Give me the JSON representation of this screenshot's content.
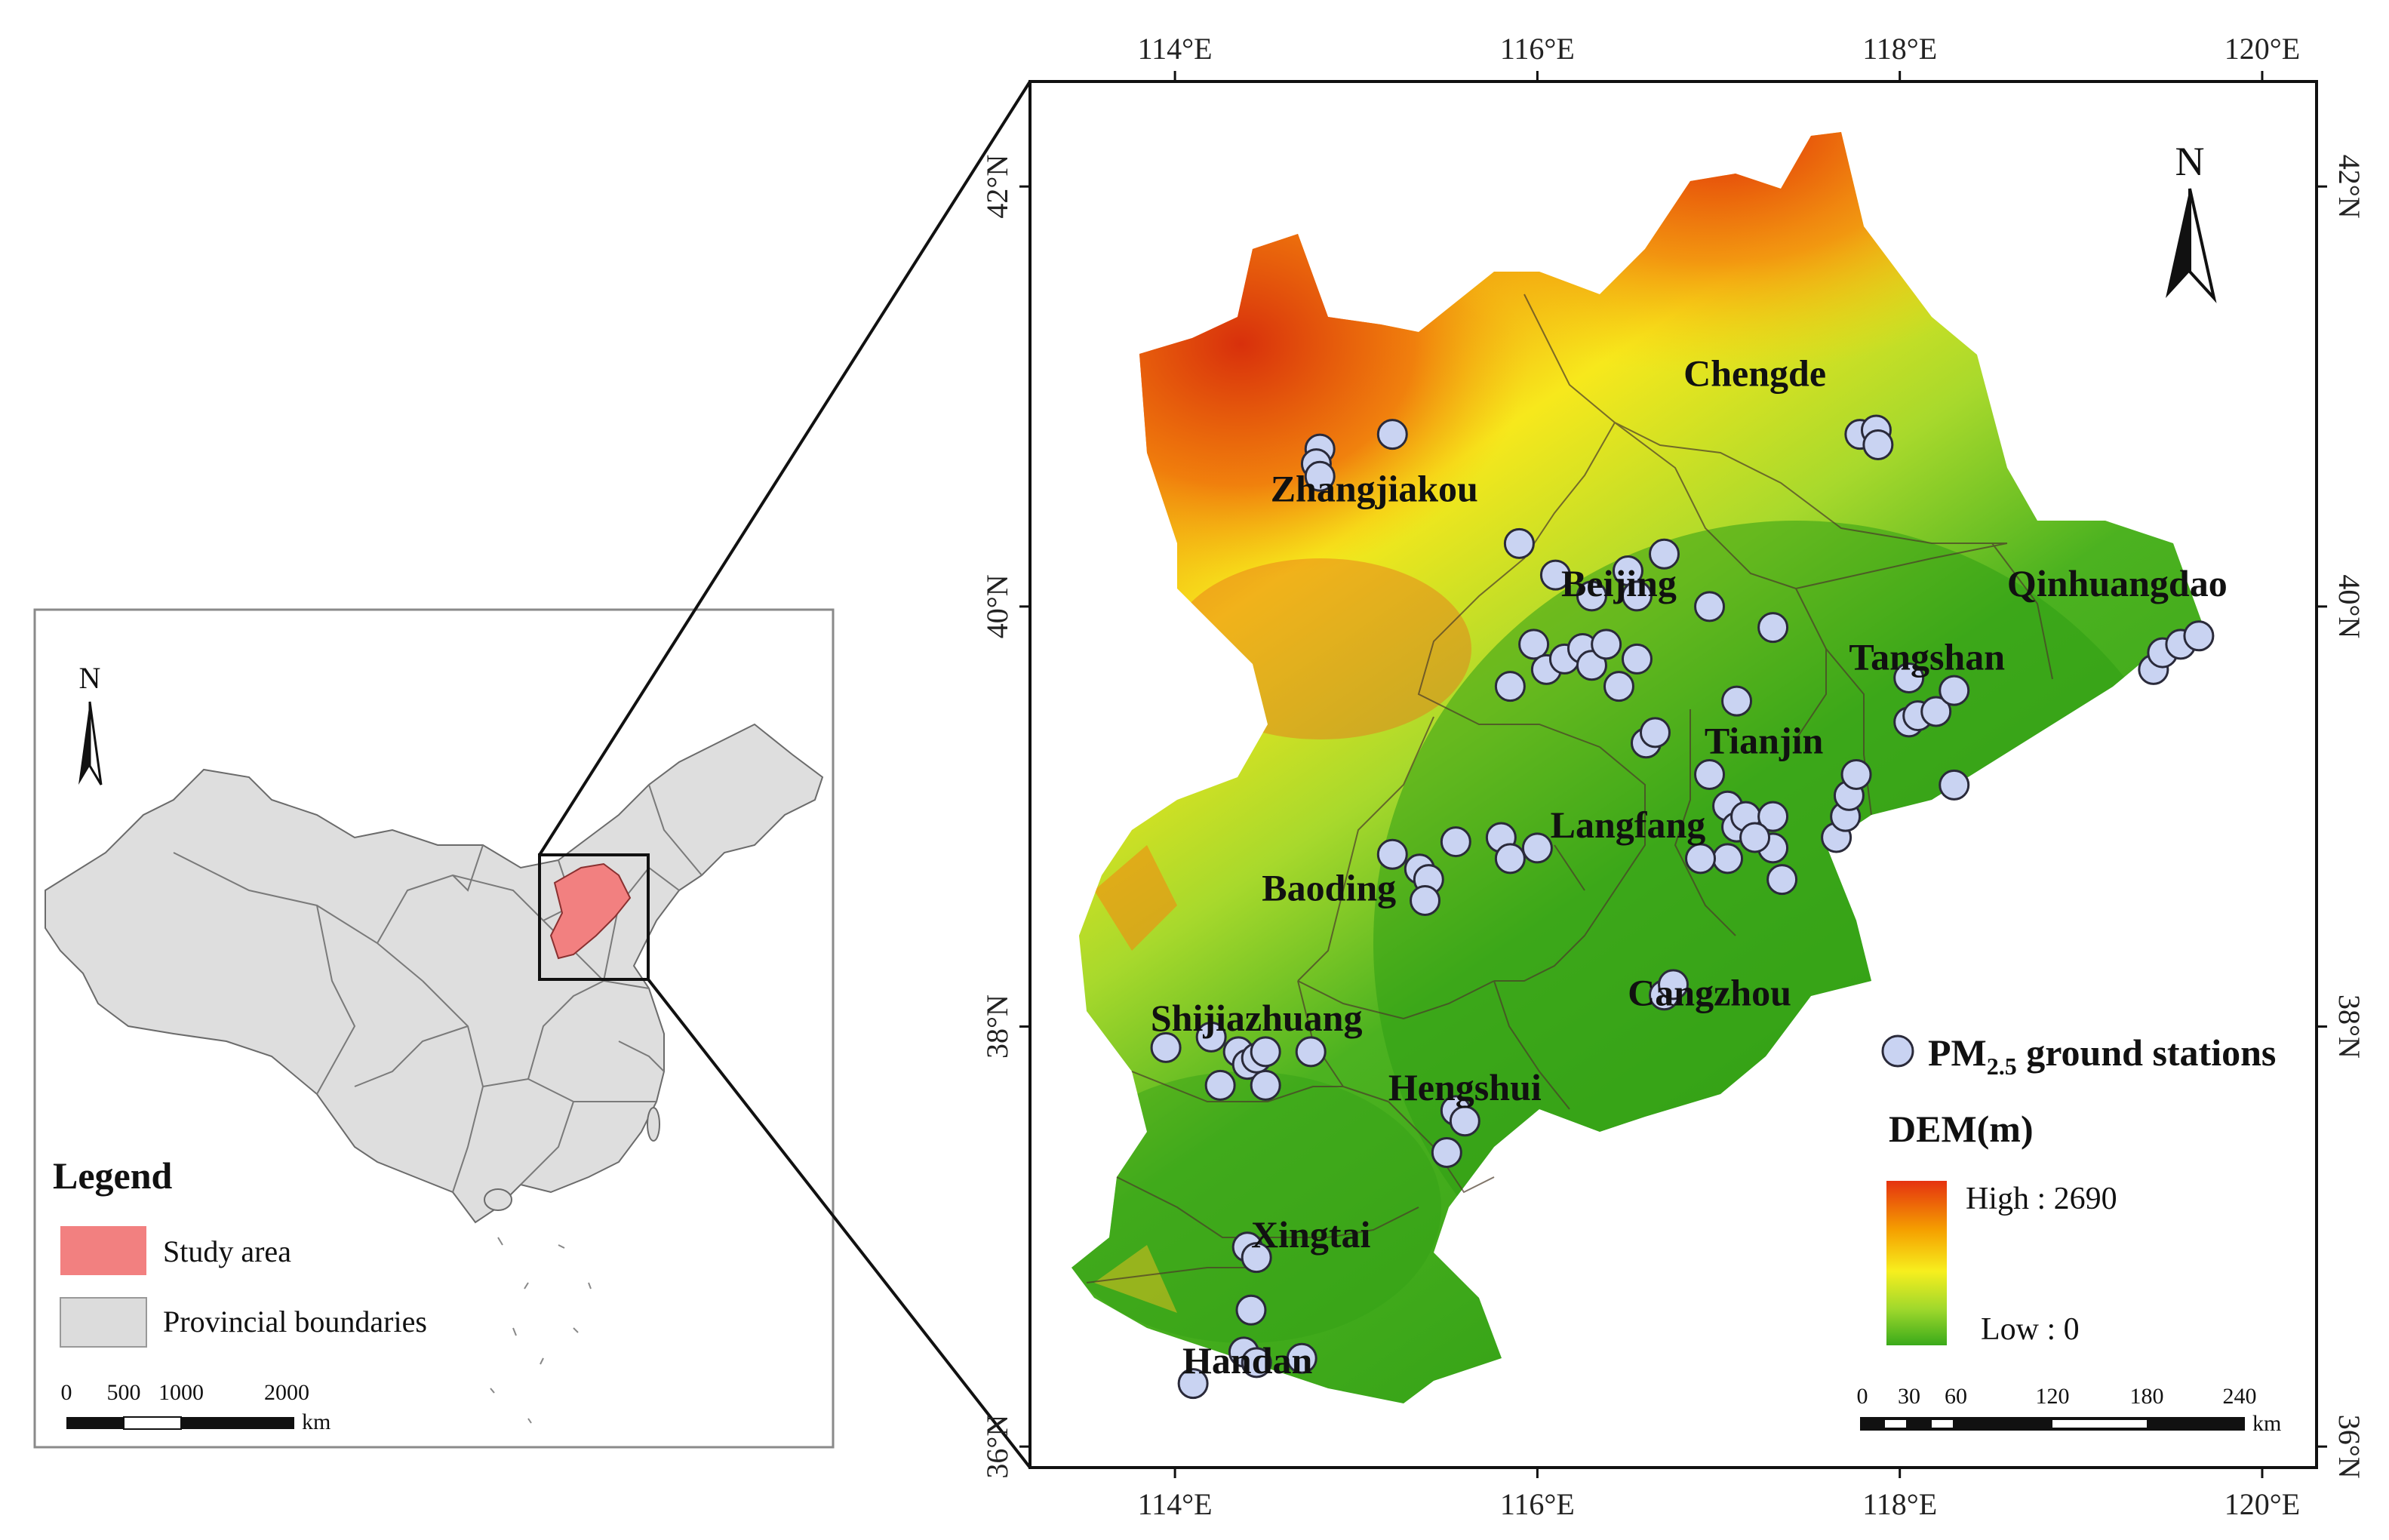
{
  "overview": {
    "north": "N",
    "legend_title": "Legend",
    "legend_items": [
      {
        "label": "Study area",
        "color": "#f28080"
      },
      {
        "label": "Provincial boundaries",
        "color": "#dcdcdc"
      }
    ],
    "scalebar": {
      "ticks": [
        "0",
        "500",
        "1000",
        "2000"
      ],
      "unit": "km"
    }
  },
  "main": {
    "north": "N",
    "lon_ticks": [
      "114°E",
      "116°E",
      "118°E",
      "120°E"
    ],
    "lat_ticks": [
      "36°N",
      "38°N",
      "40°N",
      "42°N"
    ],
    "lon_values": [
      114,
      116,
      118,
      120
    ],
    "lat_values": [
      36,
      38,
      40,
      42
    ],
    "extent": {
      "lon": [
        113.2,
        120.3
      ],
      "lat": [
        35.9,
        42.5
      ]
    },
    "cities": [
      {
        "name": "Chengde",
        "lon": 117.2,
        "lat": 41.05
      },
      {
        "name": "Zhangjiakou",
        "lon": 115.1,
        "lat": 40.5
      },
      {
        "name": "Beijing",
        "lon": 116.45,
        "lat": 40.05
      },
      {
        "name": "Qinhuangdao",
        "lon": 119.2,
        "lat": 40.05
      },
      {
        "name": "Tangshan",
        "lon": 118.15,
        "lat": 39.7
      },
      {
        "name": "Tianjin",
        "lon": 117.25,
        "lat": 39.3
      },
      {
        "name": "Langfang",
        "lon": 116.5,
        "lat": 38.9
      },
      {
        "name": "Baoding",
        "lon": 114.85,
        "lat": 38.6
      },
      {
        "name": "Shijiazhuang",
        "lon": 114.45,
        "lat": 37.98
      },
      {
        "name": "Cangzhou",
        "lon": 116.95,
        "lat": 38.1
      },
      {
        "name": "Hengshui",
        "lon": 115.6,
        "lat": 37.65
      },
      {
        "name": "Xingtai",
        "lon": 114.75,
        "lat": 36.95
      },
      {
        "name": "Handan",
        "lon": 114.4,
        "lat": 36.35
      }
    ],
    "stations": [
      [
        114.8,
        40.75
      ],
      [
        114.78,
        40.68
      ],
      [
        114.8,
        40.62
      ],
      [
        115.2,
        40.82
      ],
      [
        117.78,
        40.82
      ],
      [
        117.87,
        40.84
      ],
      [
        117.88,
        40.77
      ],
      [
        115.9,
        40.3
      ],
      [
        116.1,
        40.15
      ],
      [
        116.5,
        40.17
      ],
      [
        116.7,
        40.25
      ],
      [
        116.3,
        40.05
      ],
      [
        116.55,
        40.05
      ],
      [
        116.95,
        40.0
      ],
      [
        117.3,
        39.9
      ],
      [
        115.98,
        39.82
      ],
      [
        116.05,
        39.7
      ],
      [
        116.15,
        39.75
      ],
      [
        116.25,
        39.8
      ],
      [
        116.3,
        39.72
      ],
      [
        116.38,
        39.82
      ],
      [
        116.45,
        39.62
      ],
      [
        116.55,
        39.75
      ],
      [
        115.85,
        39.62
      ],
      [
        117.1,
        39.55
      ],
      [
        118.05,
        39.45
      ],
      [
        118.1,
        39.48
      ],
      [
        118.2,
        39.5
      ],
      [
        118.3,
        39.6
      ],
      [
        118.05,
        39.66
      ],
      [
        119.4,
        39.7
      ],
      [
        119.45,
        39.78
      ],
      [
        119.55,
        39.82
      ],
      [
        119.65,
        39.86
      ],
      [
        116.6,
        39.35
      ],
      [
        116.65,
        39.4
      ],
      [
        116.95,
        39.2
      ],
      [
        117.05,
        39.05
      ],
      [
        117.1,
        38.95
      ],
      [
        117.15,
        39.0
      ],
      [
        117.3,
        39.0
      ],
      [
        117.3,
        38.85
      ],
      [
        117.2,
        38.9
      ],
      [
        117.05,
        38.8
      ],
      [
        116.9,
        38.8
      ],
      [
        117.35,
        38.7
      ],
      [
        117.65,
        38.9
      ],
      [
        117.7,
        39.0
      ],
      [
        117.72,
        39.1
      ],
      [
        117.76,
        39.2
      ],
      [
        118.3,
        39.15
      ],
      [
        115.8,
        38.9
      ],
      [
        115.55,
        38.88
      ],
      [
        115.85,
        38.8
      ],
      [
        116.0,
        38.85
      ],
      [
        115.2,
        38.82
      ],
      [
        115.35,
        38.75
      ],
      [
        115.4,
        38.7
      ],
      [
        115.38,
        38.6
      ],
      [
        116.7,
        38.15
      ],
      [
        116.75,
        38.2
      ],
      [
        113.95,
        37.9
      ],
      [
        114.2,
        37.95
      ],
      [
        114.35,
        37.88
      ],
      [
        114.4,
        37.82
      ],
      [
        114.45,
        37.85
      ],
      [
        114.5,
        37.88
      ],
      [
        114.25,
        37.72
      ],
      [
        114.5,
        37.72
      ],
      [
        114.75,
        37.88
      ],
      [
        115.55,
        37.6
      ],
      [
        115.6,
        37.55
      ],
      [
        115.5,
        37.4
      ],
      [
        114.4,
        36.95
      ],
      [
        114.45,
        36.9
      ],
      [
        114.42,
        36.65
      ],
      [
        114.38,
        36.45
      ],
      [
        114.45,
        36.4
      ],
      [
        114.7,
        36.42
      ],
      [
        114.1,
        36.3
      ]
    ],
    "legend": {
      "stations_label": "PM",
      "stations_sub": "2.5",
      "stations_rest": " ground stations",
      "dem_title": "DEM(m)",
      "high_label": "High : 2690",
      "low_label": "Low : 0",
      "station_color": "#c9d3f2",
      "ramp_colors": [
        "#e53210",
        "#f5a000",
        "#f7ef1e",
        "#9fd82c",
        "#3aaa1a"
      ]
    },
    "scalebar": {
      "ticks": [
        "0",
        "30",
        "60",
        "120",
        "180",
        "240"
      ],
      "unit": "km"
    }
  }
}
